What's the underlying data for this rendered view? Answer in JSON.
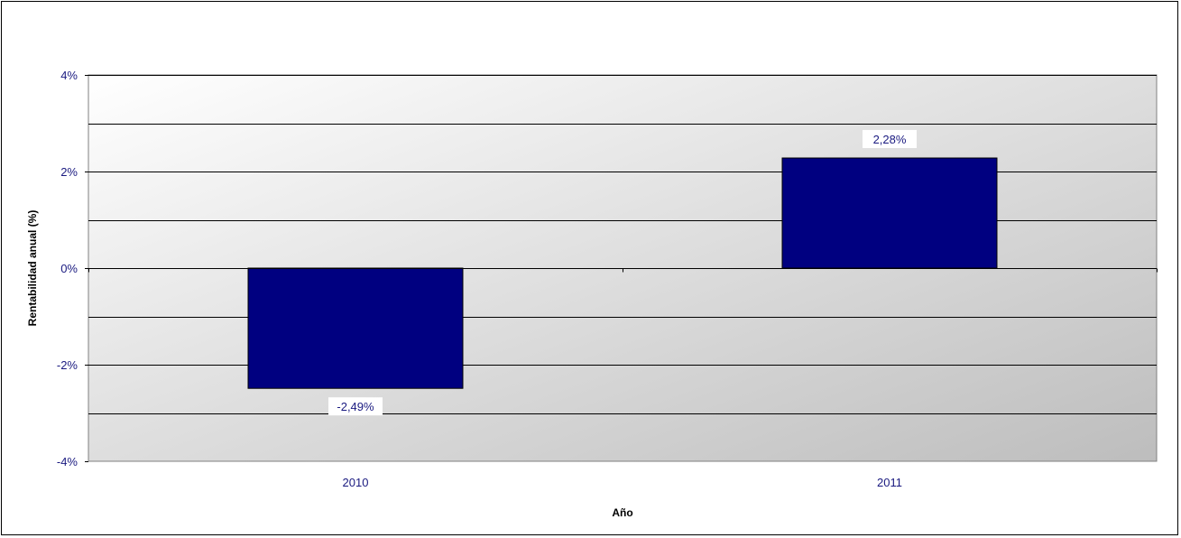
{
  "chart_data": {
    "type": "bar",
    "categories": [
      "2010",
      "2011"
    ],
    "values": [
      -2.49,
      2.28
    ],
    "data_labels": [
      "-2,49%",
      "2,28%"
    ],
    "title": "",
    "xlabel": "Año",
    "ylabel": "Rentabilidad anual (%)",
    "ylim": [
      -4,
      4
    ],
    "y_ticks": [
      4,
      2,
      0,
      -2,
      -4
    ],
    "y_tick_labels": [
      "4%",
      "2%",
      "0%",
      "-2%",
      "-4%"
    ],
    "grid": true,
    "gridline_step": 1,
    "legend": "none",
    "bar_color": "#000080",
    "plot_gradient": [
      "#ffffff",
      "#bdbdbd"
    ]
  }
}
